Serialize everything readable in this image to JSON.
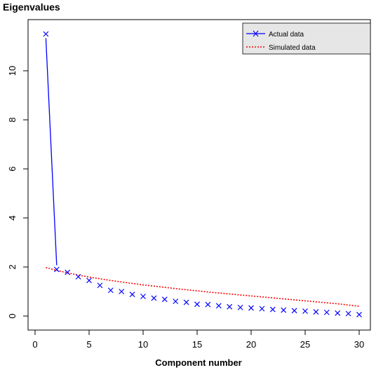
{
  "chart_data": {
    "type": "line",
    "title": "Eigenvalues",
    "xlabel": "Component number",
    "ylabel": "",
    "xlim": [
      0,
      30
    ],
    "ylim": [
      0,
      11.5
    ],
    "xticks": [
      0,
      5,
      10,
      15,
      20,
      25,
      30
    ],
    "yticks": [
      0,
      2,
      4,
      6,
      8,
      10
    ],
    "grid": false,
    "legend_position": "top-right",
    "series": [
      {
        "name": "Actual data",
        "color": "#0000ff",
        "style": "line+cross",
        "x": [
          1,
          2,
          3,
          4,
          5,
          6,
          7,
          8,
          9,
          10,
          11,
          12,
          13,
          14,
          15,
          16,
          17,
          18,
          19,
          20,
          21,
          22,
          23,
          24,
          25,
          26,
          27,
          28,
          29,
          30
        ],
        "values": [
          11.5,
          1.9,
          1.78,
          1.6,
          1.45,
          1.25,
          1.05,
          1.0,
          0.88,
          0.8,
          0.73,
          0.68,
          0.6,
          0.56,
          0.48,
          0.47,
          0.42,
          0.38,
          0.35,
          0.33,
          0.3,
          0.27,
          0.24,
          0.22,
          0.2,
          0.17,
          0.15,
          0.12,
          0.1,
          0.06
        ]
      },
      {
        "name": "Simulated data",
        "color": "#ff0000",
        "style": "dotted",
        "x": [
          1,
          2,
          3,
          4,
          5,
          6,
          7,
          8,
          9,
          10,
          11,
          12,
          13,
          14,
          15,
          16,
          17,
          18,
          19,
          20,
          21,
          22,
          23,
          24,
          25,
          26,
          27,
          28,
          29,
          30
        ],
        "values": [
          1.98,
          1.86,
          1.76,
          1.67,
          1.59,
          1.52,
          1.45,
          1.39,
          1.33,
          1.27,
          1.22,
          1.17,
          1.12,
          1.07,
          1.03,
          0.98,
          0.94,
          0.9,
          0.86,
          0.82,
          0.78,
          0.74,
          0.7,
          0.66,
          0.62,
          0.58,
          0.54,
          0.5,
          0.45,
          0.4
        ]
      }
    ]
  }
}
